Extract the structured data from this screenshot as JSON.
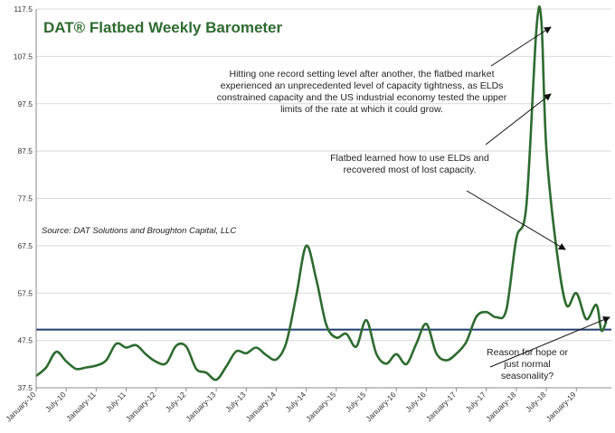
{
  "chart_data": {
    "type": "line",
    "title": "DAT® Flatbed Weekly Barometer",
    "source": "Source: DAT Solutions and Broughton Capital, LLC",
    "ylim": [
      37.5,
      117.5
    ],
    "y_ticks": [
      "37.5",
      "47.5",
      "57.5",
      "67.5",
      "77.5",
      "87.5",
      "97.5",
      "107.5",
      "117.5"
    ],
    "x_tick_labels": [
      "January-10",
      "July-10",
      "January-11",
      "July-11",
      "January-12",
      "July-12",
      "January-13",
      "July-13",
      "January-14",
      "July-14",
      "January-15",
      "July-15",
      "January-16",
      "July-16",
      "January-17",
      "July-17",
      "January-18",
      "July-18",
      "January-19"
    ],
    "grid": true,
    "reference_line": {
      "value": 49.8,
      "color": "#1f3b6e"
    },
    "series": [
      {
        "color": "#2e6b30",
        "x": [
          "2010-01",
          "2010-03",
          "2010-05",
          "2010-07",
          "2010-09",
          "2010-11",
          "2011-01",
          "2011-03",
          "2011-05",
          "2011-07",
          "2011-09",
          "2011-11",
          "2012-01",
          "2012-03",
          "2012-05",
          "2012-07",
          "2012-09",
          "2012-11",
          "2013-01",
          "2013-03",
          "2013-05",
          "2013-07",
          "2013-09",
          "2013-11",
          "2014-01",
          "2014-03",
          "2014-05",
          "2014-07",
          "2014-09",
          "2014-11",
          "2015-01",
          "2015-03",
          "2015-05",
          "2015-07",
          "2015-09",
          "2015-11",
          "2016-01",
          "2016-03",
          "2016-05",
          "2016-07",
          "2016-09",
          "2016-11",
          "2017-01",
          "2017-03",
          "2017-05",
          "2017-07",
          "2017-09",
          "2017-11",
          "2018-01",
          "2018-03",
          "2018-05",
          "2018-06",
          "2018-07",
          "2018-09",
          "2018-11",
          "2019-01",
          "2019-03",
          "2019-05",
          "2019-06",
          "2019-07"
        ],
        "values": [
          40.0,
          41.8,
          45.1,
          43.1,
          41.5,
          41.8,
          42.2,
          43.3,
          46.8,
          46.0,
          46.5,
          44.5,
          43.0,
          42.7,
          46.4,
          46.2,
          41.5,
          40.7,
          39.2,
          42.0,
          45.2,
          44.8,
          46.0,
          44.4,
          43.5,
          47.0,
          57.0,
          67.5,
          60.4,
          50.8,
          48.1,
          48.9,
          46.2,
          51.8,
          44.7,
          42.6,
          44.6,
          42.5,
          46.8,
          51.0,
          44.8,
          43.3,
          44.7,
          47.2,
          52.5,
          53.5,
          52.4,
          54.0,
          69.0,
          76.0,
          113.0,
          115.0,
          88.0,
          67.0,
          55.0,
          57.5,
          52.0,
          55.0,
          49.6,
          51.6
        ]
      }
    ],
    "annotations": [
      {
        "lines": [
          "Hitting one record setting level after another, the flatbed market",
          "experienced an unprecedented level of capacity tightness, as ELDs",
          "constrained capacity and the US industrial economy tested the upper",
          "limits of the rate at which it could grow."
        ]
      },
      {
        "lines": [
          "Flatbed learned how to use ELDs and",
          "recovered most of lost capacity."
        ]
      },
      {
        "lines": [
          "Reason for hope or",
          "just normal",
          "seasonality?"
        ]
      }
    ]
  }
}
